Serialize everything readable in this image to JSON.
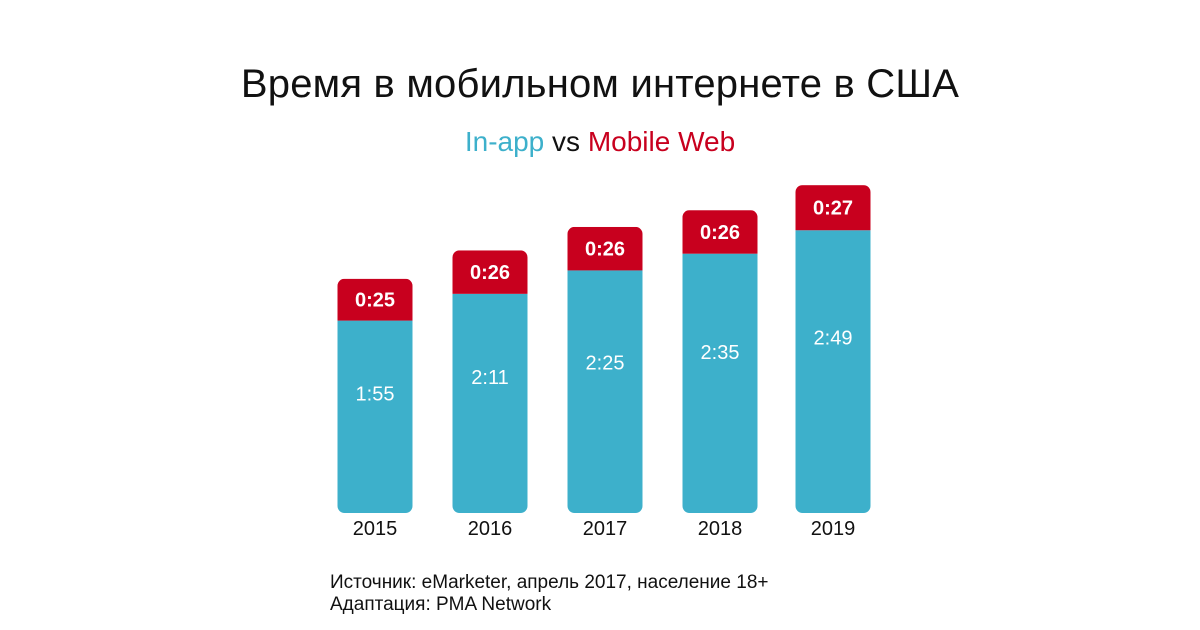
{
  "title": "Время в мобильном интернете в США",
  "subtitle": {
    "part1": "In-app",
    "part2": " vs ",
    "part3": "Mobile Web"
  },
  "colors": {
    "inapp": "#3db0cb",
    "mobileweb": "#c8001e",
    "text": "#111111",
    "bar_label": "#ffffff"
  },
  "chart_data": {
    "type": "bar",
    "stacked": true,
    "categories": [
      "2015",
      "2016",
      "2017",
      "2018",
      "2019"
    ],
    "series": [
      {
        "name": "In-app",
        "values": [
          115,
          131,
          145,
          155,
          169
        ],
        "labels": [
          "1:55",
          "2:11",
          "2:25",
          "2:35",
          "2:49"
        ]
      },
      {
        "name": "Mobile Web",
        "values": [
          25,
          26,
          26,
          26,
          27
        ],
        "labels": [
          "0:25",
          "0:26",
          "0:26",
          "0:26",
          "0:27"
        ]
      }
    ],
    "value_units": "minutes per day",
    "xlabel": "",
    "ylabel": "",
    "grid": false,
    "legend": "in subtitle"
  },
  "footer": {
    "source": "Источник: eMarketer, апрель 2017, население 18+",
    "adaptation": "Адаптация: PMA Network"
  }
}
